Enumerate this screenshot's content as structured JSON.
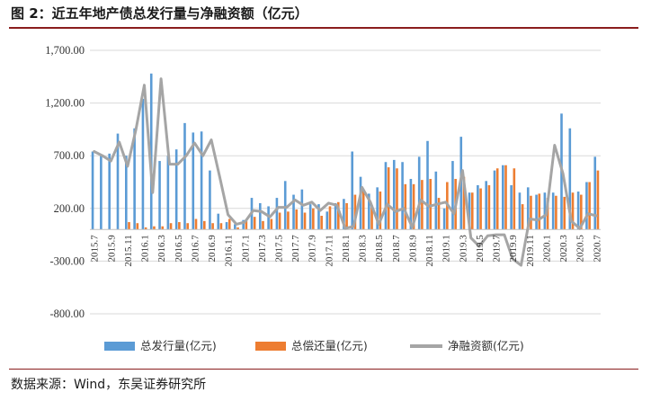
{
  "header": {
    "title": "图 2：近五年地产债总发行量与净融资额（亿元）"
  },
  "footer": {
    "source": "数据来源：Wind，东吴证券研究所"
  },
  "colors": {
    "issue": "#5b9bd5",
    "repay": "#ed7d31",
    "net": "#a5a5a5",
    "grid": "#d9d9d9"
  },
  "chart_data": {
    "type": "bar+line",
    "ylim": [
      -800,
      1700
    ],
    "yticks": [
      "1,700.00",
      "1,200.00",
      "700.00",
      "200.00",
      "-300.00",
      "-800.00"
    ],
    "ytick_values": [
      1700,
      1200,
      700,
      200,
      -300,
      -800
    ],
    "grid": "horizontal",
    "legend_position": "bottom",
    "xticklabels": [
      "2015.7",
      "2015.9",
      "2015.11",
      "2016.1",
      "2016.3",
      "2016.5",
      "2016.7",
      "2016.9",
      "2016.11",
      "2017.1",
      "2017.3",
      "2017.5",
      "2017.7",
      "2017.9",
      "2017.11",
      "2018.1",
      "2018.3",
      "2018.5",
      "2018.7",
      "2018.9",
      "2018.11",
      "2019.1",
      "2019.3",
      "2019.5",
      "2019.7",
      "2019.9",
      "2019.11",
      "2020.1",
      "2020.3",
      "2020.5",
      "2020.7"
    ],
    "series": [
      {
        "name": "总发行量(亿元)",
        "kind": "bar",
        "values": [
          740,
          700,
          720,
          910,
          700,
          960,
          1240,
          1480,
          650,
          700,
          760,
          1010,
          920,
          930,
          560,
          150,
          70,
          50,
          90,
          300,
          250,
          220,
          300,
          460,
          330,
          380,
          240,
          240,
          170,
          250,
          290,
          740,
          500,
          340,
          400,
          640,
          660,
          640,
          480,
          690,
          840,
          550,
          200,
          650,
          880,
          350,
          420,
          460,
          560,
          610,
          420,
          350,
          400,
          330,
          350,
          350,
          1100,
          960,
          360,
          450,
          690
        ]
      },
      {
        "name": "总偿还量(亿元)",
        "kind": "bar",
        "values": [
          0,
          0,
          0,
          0,
          70,
          60,
          20,
          30,
          30,
          60,
          70,
          60,
          100,
          80,
          60,
          60,
          100,
          20,
          80,
          120,
          80,
          100,
          160,
          170,
          190,
          160,
          200,
          130,
          220,
          260,
          250,
          330,
          370,
          230,
          360,
          590,
          580,
          430,
          430,
          470,
          480,
          300,
          450,
          480,
          500,
          350,
          390,
          420,
          580,
          610,
          580,
          240,
          320,
          340,
          300,
          320,
          310,
          350,
          330,
          450,
          560
        ]
      },
      {
        "name": "净融资额(亿元)",
        "kind": "line",
        "values": [
          740,
          700,
          650,
          830,
          600,
          950,
          1370,
          350,
          1430,
          620,
          620,
          700,
          820,
          700,
          850,
          500,
          140,
          50,
          70,
          180,
          170,
          120,
          210,
          210,
          280,
          230,
          260,
          180,
          250,
          230,
          10,
          30,
          400,
          260,
          50,
          240,
          170,
          200,
          20,
          280,
          220,
          240,
          260,
          150,
          560,
          -80,
          -160,
          -60,
          -50,
          -50,
          -280,
          -340,
          100,
          90,
          140,
          800,
          530,
          80,
          10,
          150,
          130
        ]
      }
    ]
  }
}
